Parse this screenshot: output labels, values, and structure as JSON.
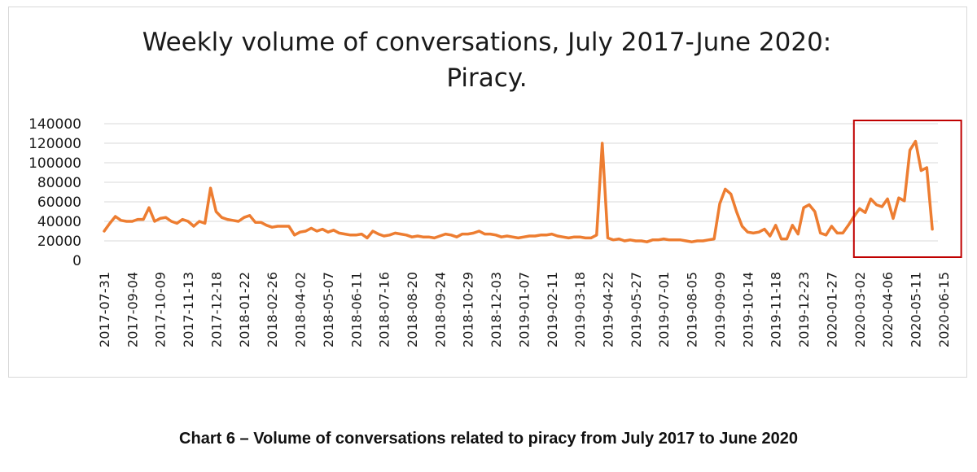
{
  "chart_data": {
    "type": "line",
    "title_lines": [
      "Weekly volume of conversations, July 2017-June 2020:",
      "Piracy."
    ],
    "xlabel": "",
    "ylabel": "",
    "ylim": [
      0,
      140000
    ],
    "yticks": [
      0,
      20000,
      40000,
      60000,
      80000,
      100000,
      120000,
      140000
    ],
    "ytick_labels": [
      "0",
      "20000",
      "40000",
      "60000",
      "80000",
      "100000",
      "120000",
      "140000"
    ],
    "x_tick_labels": [
      "2017-07-31",
      "2017-09-04",
      "2017-10-09",
      "2017-11-13",
      "2017-12-18",
      "2018-01-22",
      "2018-02-26",
      "2018-04-02",
      "2018-05-07",
      "2018-06-11",
      "2018-07-16",
      "2018-08-20",
      "2018-09-24",
      "2018-10-29",
      "2018-12-03",
      "2019-01-07",
      "2019-02-11",
      "2019-03-18",
      "2019-04-22",
      "2019-05-27",
      "2019-07-01",
      "2019-08-05",
      "2019-09-09",
      "2019-10-14",
      "2019-11-18",
      "2019-12-23",
      "2020-01-27",
      "2020-03-02",
      "2020-04-06",
      "2020-05-11",
      "2020-06-15"
    ],
    "x_start": "2017-07-31",
    "x_step_days": 7,
    "grid": "horizontal",
    "legend": "none",
    "highlight_box": {
      "from": "2020-03-02",
      "to": "2020-06-29"
    },
    "colors": {
      "line": "#ed7d31",
      "highlight": "#c00000",
      "grid": "#d9d9d9"
    },
    "series": [
      {
        "values": [
          30000,
          38000,
          45000,
          41000,
          40000,
          40000,
          42000,
          42000,
          54000,
          40000,
          43000,
          44000,
          40000,
          38000,
          42000,
          40000,
          35000,
          40000,
          38000,
          74000,
          50000,
          44000,
          42000,
          41000,
          40000,
          44000,
          46000,
          39000,
          39000,
          36000,
          34000,
          35000,
          35000,
          35000,
          26000,
          29000,
          30000,
          33000,
          30000,
          32000,
          29000,
          31000,
          28000,
          27000,
          26000,
          26000,
          27000,
          23000,
          30000,
          27000,
          25000,
          26000,
          28000,
          27000,
          26000,
          24000,
          25000,
          24000,
          24000,
          23000,
          25000,
          27000,
          26000,
          24000,
          27000,
          27000,
          28000,
          30000,
          27000,
          27000,
          26000,
          24000,
          25000,
          24000,
          23000,
          24000,
          25000,
          25000,
          26000,
          26000,
          27000,
          25000,
          24000,
          23000,
          24000,
          24000,
          23000,
          23000,
          26000,
          120000,
          23000,
          21000,
          22000,
          20000,
          21000,
          20000,
          20000,
          19000,
          21000,
          21000,
          22000,
          21000,
          21000,
          21000,
          20000,
          19000,
          20000,
          20000,
          21000,
          22000,
          58000,
          73000,
          68000,
          50000,
          35000,
          29000,
          28000,
          29000,
          32000,
          25000,
          36000,
          22000,
          22000,
          36000,
          27000,
          54000,
          57000,
          50000,
          28000,
          26000,
          35000,
          28000,
          28000,
          36000,
          45000,
          53000,
          49000,
          63000,
          57000,
          55000,
          63000,
          43000,
          64000,
          61000,
          113000,
          122000,
          92000,
          95000,
          32000
        ]
      }
    ]
  },
  "caption": "Chart 6 – Volume of conversations related to piracy from July 2017 to June 2020"
}
